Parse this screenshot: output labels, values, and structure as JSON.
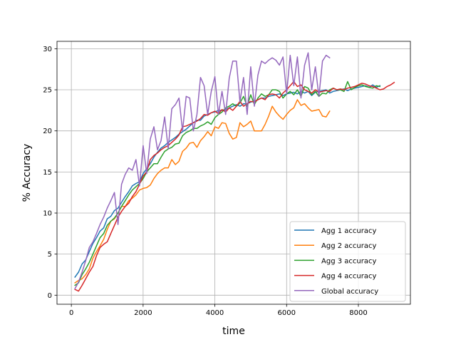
{
  "chart_data": {
    "type": "line",
    "title": "",
    "xlabel": "time",
    "ylabel": "% Accuracy",
    "xlim": [
      -400,
      9450
    ],
    "ylim": [
      -1.1,
      30.9
    ],
    "xticks": [
      0,
      2000,
      4000,
      6000,
      8000
    ],
    "yticks": [
      0,
      5,
      10,
      15,
      20,
      25,
      30
    ],
    "xtick_labels": [
      "0",
      "2000",
      "4000",
      "6000",
      "8000"
    ],
    "ytick_labels": [
      "0",
      "5",
      "10",
      "15",
      "20",
      "25",
      "30"
    ],
    "grid": true,
    "legend": "lower-right",
    "series": [
      {
        "name": "Agg 1 accuracy",
        "color": "#1f77b4",
        "x": [
          100,
          200,
          300,
          400,
          500,
          600,
          700,
          800,
          900,
          1000,
          1100,
          1200,
          1300,
          1400,
          1500,
          1600,
          1700,
          1800,
          1900,
          2000,
          2100,
          2200,
          2300,
          2400,
          2500,
          2600,
          2700,
          2800,
          2900,
          3000,
          3100,
          3200,
          3300,
          3400,
          3500,
          3600,
          3700,
          3800,
          3900,
          4000,
          4100,
          4200,
          4300,
          4400,
          4500,
          4600,
          4700,
          4800,
          4900,
          5000,
          5100,
          5200,
          5300,
          5400,
          5500,
          5600,
          5700,
          5800,
          5900,
          6000,
          6100,
          6200,
          6300,
          6400,
          6500,
          6600,
          6700,
          6800,
          6900,
          7000,
          7100,
          7200,
          7300,
          7400,
          7500,
          7600,
          7700,
          7800,
          7900,
          8000,
          8100,
          8200,
          8300,
          8400,
          8500,
          8600
        ],
        "y": [
          2.2,
          2.8,
          3.8,
          4.3,
          5.3,
          6.3,
          7.0,
          7.8,
          8.2,
          9.3,
          9.6,
          10.3,
          10.6,
          11.3,
          12.0,
          12.6,
          13.3,
          13.6,
          13.8,
          14.8,
          15.4,
          16.0,
          16.8,
          17.4,
          17.9,
          18.2,
          18.6,
          18.9,
          19.2,
          19.6,
          19.9,
          20.2,
          20.6,
          21.0,
          21.3,
          21.3,
          21.8,
          22.0,
          22.2,
          22.3,
          22.5,
          22.5,
          22.6,
          22.8,
          23.0,
          23.2,
          23.0,
          23.3,
          23.3,
          23.5,
          23.6,
          23.8,
          24.0,
          24.0,
          24.2,
          24.3,
          24.4,
          24.5,
          24.3,
          24.5,
          24.6,
          24.7,
          24.5,
          24.8,
          24.6,
          24.8,
          24.3,
          24.7,
          24.8,
          24.9,
          25.0,
          24.6,
          24.8,
          24.9,
          25.0,
          25.1,
          24.9,
          25.1,
          25.2,
          25.3,
          25.4,
          25.5,
          25.3,
          25.6,
          25.3,
          25.5
        ]
      },
      {
        "name": "Agg 2 accuracy",
        "color": "#ff7f0e",
        "x": [
          100,
          200,
          300,
          400,
          500,
          600,
          700,
          800,
          900,
          1000,
          1100,
          1200,
          1300,
          1400,
          1500,
          1600,
          1700,
          1800,
          1900,
          2000,
          2100,
          2200,
          2300,
          2400,
          2500,
          2600,
          2700,
          2800,
          2900,
          3000,
          3100,
          3200,
          3300,
          3400,
          3500,
          3600,
          3700,
          3800,
          3900,
          4000,
          4100,
          4200,
          4300,
          4400,
          4500,
          4600,
          4700,
          4800,
          4900,
          5000,
          5100,
          5200,
          5300,
          5400,
          5500,
          5600,
          5700,
          5800,
          5900,
          6000,
          6100,
          6200,
          6300,
          6400,
          6500,
          6600,
          6700,
          6800,
          6900,
          7000,
          7100,
          7200
        ],
        "y": [
          1.5,
          1.8,
          2.0,
          2.5,
          3.2,
          4.5,
          5.3,
          6.0,
          6.8,
          8.0,
          9.0,
          9.3,
          10.0,
          10.8,
          10.8,
          11.5,
          11.8,
          12.2,
          12.8,
          13.0,
          13.1,
          13.4,
          14.2,
          14.8,
          15.2,
          15.5,
          15.5,
          16.5,
          15.9,
          16.3,
          17.5,
          17.9,
          18.5,
          18.6,
          18.0,
          18.8,
          19.3,
          19.9,
          19.4,
          20.5,
          20.3,
          21.0,
          20.9,
          19.7,
          19.0,
          19.2,
          21.0,
          20.5,
          20.8,
          21.2,
          20.0,
          20.0,
          20.0,
          20.8,
          21.8,
          23.0,
          22.3,
          21.8,
          21.4,
          22.0,
          22.5,
          22.8,
          23.8,
          23.1,
          23.3,
          22.8,
          22.4,
          22.5,
          22.6,
          21.8,
          21.7,
          22.4
        ]
      },
      {
        "name": "Agg 3 accuracy",
        "color": "#2ca02c",
        "x": [
          100,
          200,
          300,
          400,
          500,
          600,
          700,
          800,
          900,
          1000,
          1100,
          1200,
          1300,
          1400,
          1500,
          1600,
          1700,
          1800,
          1900,
          2000,
          2100,
          2200,
          2300,
          2400,
          2500,
          2600,
          2700,
          2800,
          2900,
          3000,
          3100,
          3200,
          3300,
          3400,
          3500,
          3600,
          3700,
          3800,
          3900,
          4000,
          4100,
          4200,
          4300,
          4400,
          4500,
          4600,
          4700,
          4800,
          4900,
          5000,
          5100,
          5200,
          5300,
          5400,
          5500,
          5600,
          5700,
          5800,
          5900,
          6000,
          6100,
          6200,
          6300,
          6400,
          6500,
          6600,
          6700,
          6800,
          6900,
          7000,
          7100,
          7200,
          7300,
          7400,
          7500,
          7600,
          7700,
          7800,
          7900,
          8000,
          8100,
          8200,
          8300,
          8400,
          8500,
          8600
        ],
        "y": [
          1.2,
          1.5,
          2.5,
          3.2,
          4.0,
          5.0,
          6.0,
          7.0,
          7.5,
          8.5,
          9.0,
          9.4,
          10.0,
          10.8,
          11.5,
          12.2,
          12.8,
          13.2,
          13.6,
          14.2,
          15.0,
          15.5,
          16.0,
          16.0,
          16.8,
          17.5,
          17.8,
          18.0,
          18.4,
          18.5,
          19.4,
          19.8,
          20.0,
          20.3,
          20.3,
          20.6,
          20.8,
          21.1,
          20.8,
          21.6,
          22.0,
          22.3,
          22.8,
          23.0,
          23.3,
          23.0,
          23.4,
          24.2,
          23.0,
          24.4,
          23.2,
          24.0,
          24.5,
          24.2,
          24.4,
          25.0,
          25.0,
          24.8,
          24.0,
          24.5,
          24.8,
          24.4,
          25.0,
          24.2,
          25.4,
          25.2,
          24.4,
          24.8,
          24.2,
          24.6,
          24.5,
          25.0,
          25.2,
          25.0,
          25.0,
          24.8,
          26.0,
          25.0,
          25.3,
          25.5,
          25.6,
          25.4,
          25.3,
          25.2,
          25.5,
          25.4
        ]
      },
      {
        "name": "Agg 4 accuracy",
        "color": "#d62728",
        "x": [
          100,
          200,
          300,
          400,
          500,
          600,
          700,
          800,
          900,
          1000,
          1100,
          1200,
          1300,
          1400,
          1500,
          1600,
          1700,
          1800,
          1900,
          2000,
          2100,
          2200,
          2300,
          2400,
          2500,
          2600,
          2700,
          2800,
          2900,
          3000,
          3100,
          3200,
          3300,
          3400,
          3500,
          3600,
          3700,
          3800,
          3900,
          4000,
          4100,
          4200,
          4300,
          4400,
          4500,
          4600,
          4700,
          4800,
          4900,
          5000,
          5100,
          5200,
          5300,
          5400,
          5500,
          5600,
          5700,
          5800,
          5900,
          6000,
          6100,
          6200,
          6300,
          6400,
          6500,
          6600,
          6700,
          6800,
          6900,
          7000,
          7100,
          7200,
          7300,
          7400,
          7500,
          7600,
          7700,
          7800,
          7900,
          8000,
          8100,
          8200,
          8300,
          8400,
          8500,
          8600,
          8700,
          8800,
          8900,
          9000
        ],
        "y": [
          0.7,
          0.5,
          1.2,
          2.0,
          2.8,
          3.5,
          4.8,
          5.8,
          6.2,
          6.5,
          7.5,
          8.5,
          9.5,
          10.2,
          10.8,
          11.2,
          12.0,
          12.6,
          13.5,
          14.5,
          15.0,
          16.5,
          17.0,
          17.3,
          17.7,
          18.0,
          18.2,
          18.6,
          19.0,
          19.5,
          20.5,
          20.6,
          20.8,
          21.0,
          21.2,
          21.5,
          22.0,
          21.9,
          22.2,
          22.4,
          22.1,
          22.6,
          22.3,
          22.8,
          22.5,
          23.0,
          23.6,
          23.0,
          23.3,
          23.6,
          23.5,
          23.8,
          24.0,
          23.8,
          24.4,
          24.5,
          24.4,
          24.0,
          24.6,
          25.0,
          25.5,
          26.0,
          25.4,
          25.6,
          25.0,
          24.8,
          24.6,
          25.0,
          24.7,
          24.8,
          24.9,
          24.8,
          25.2,
          25.0,
          25.1,
          25.0,
          25.2,
          25.3,
          25.4,
          25.6,
          25.8,
          25.7,
          25.5,
          25.4,
          25.2,
          25.0,
          25.1,
          25.4,
          25.6,
          25.9
        ]
      },
      {
        "name": "Global accuracy",
        "color": "#9467bd",
        "x": [
          100,
          200,
          300,
          400,
          500,
          600,
          700,
          800,
          900,
          1000,
          1100,
          1200,
          1300,
          1400,
          1500,
          1600,
          1700,
          1800,
          1900,
          2000,
          2100,
          2200,
          2300,
          2400,
          2500,
          2600,
          2700,
          2800,
          2900,
          3000,
          3100,
          3200,
          3300,
          3400,
          3500,
          3600,
          3700,
          3800,
          3900,
          4000,
          4100,
          4200,
          4300,
          4400,
          4500,
          4600,
          4700,
          4800,
          4900,
          5000,
          5100,
          5200,
          5300,
          5400,
          5500,
          5600,
          5700,
          5800,
          5900,
          6000,
          6100,
          6200,
          6300,
          6400,
          6500,
          6600,
          6700,
          6800,
          6900,
          7000,
          7100,
          7200
        ],
        "y": [
          0.8,
          1.6,
          2.8,
          4.2,
          5.8,
          6.5,
          7.5,
          8.6,
          9.5,
          10.6,
          11.5,
          12.5,
          8.6,
          13.5,
          14.7,
          15.5,
          15.2,
          16.5,
          13.3,
          18.2,
          14.8,
          19.0,
          20.5,
          17.7,
          18.8,
          21.7,
          17.8,
          22.7,
          23.2,
          24.0,
          20.0,
          24.2,
          24.0,
          20.0,
          22.0,
          26.5,
          25.5,
          22.0,
          24.8,
          26.6,
          22.0,
          24.8,
          22.0,
          26.4,
          28.5,
          28.5,
          23.5,
          26.5,
          22.0,
          27.8,
          23.0,
          26.8,
          28.5,
          28.2,
          28.6,
          28.9,
          28.6,
          28.0,
          29.0,
          24.5,
          29.2,
          25.5,
          29.0,
          24.0,
          28.0,
          29.5,
          25.0,
          27.8,
          24.2,
          28.5,
          29.2,
          28.9
        ]
      }
    ]
  }
}
